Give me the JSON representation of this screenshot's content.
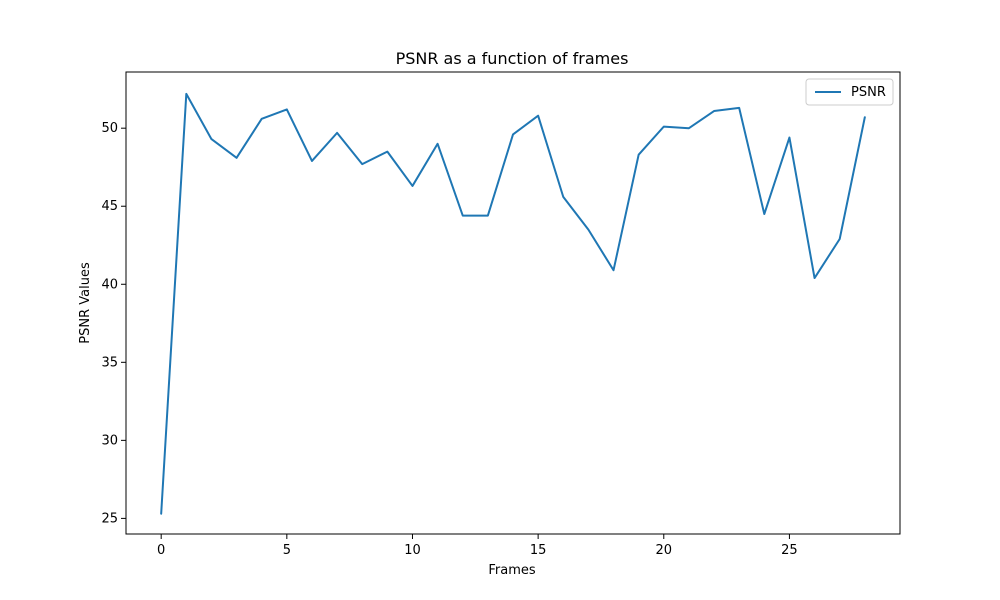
{
  "chart_data": {
    "type": "line",
    "title": "PSNR as a function of frames",
    "xlabel": "Frames",
    "ylabel": "PSNR Values",
    "xlim": [
      -1.4,
      29.4
    ],
    "ylim": [
      24.0,
      53.6
    ],
    "xticks": [
      0,
      5,
      10,
      15,
      20,
      25
    ],
    "xtick_labels": [
      "0",
      "5",
      "10",
      "15",
      "20",
      "25"
    ],
    "yticks": [
      25,
      30,
      35,
      40,
      45,
      50
    ],
    "ytick_labels": [
      "25",
      "30",
      "35",
      "40",
      "45",
      "50"
    ],
    "grid": false,
    "legend_position": "top-right",
    "series": [
      {
        "name": "PSNR",
        "color": "#1f77b4",
        "x": [
          0,
          1,
          2,
          3,
          4,
          5,
          6,
          7,
          8,
          9,
          10,
          11,
          12,
          13,
          14,
          15,
          16,
          17,
          18,
          19,
          20,
          21,
          22,
          23,
          24,
          25,
          26,
          27,
          28
        ],
        "y": [
          25.3,
          52.2,
          49.3,
          48.1,
          50.6,
          51.2,
          47.9,
          49.7,
          47.7,
          48.5,
          46.3,
          49.0,
          44.4,
          44.4,
          49.6,
          50.8,
          45.6,
          43.5,
          40.9,
          48.3,
          50.1,
          50.0,
          51.1,
          51.3,
          44.5,
          49.4,
          40.4,
          42.9,
          50.7
        ]
      }
    ]
  }
}
